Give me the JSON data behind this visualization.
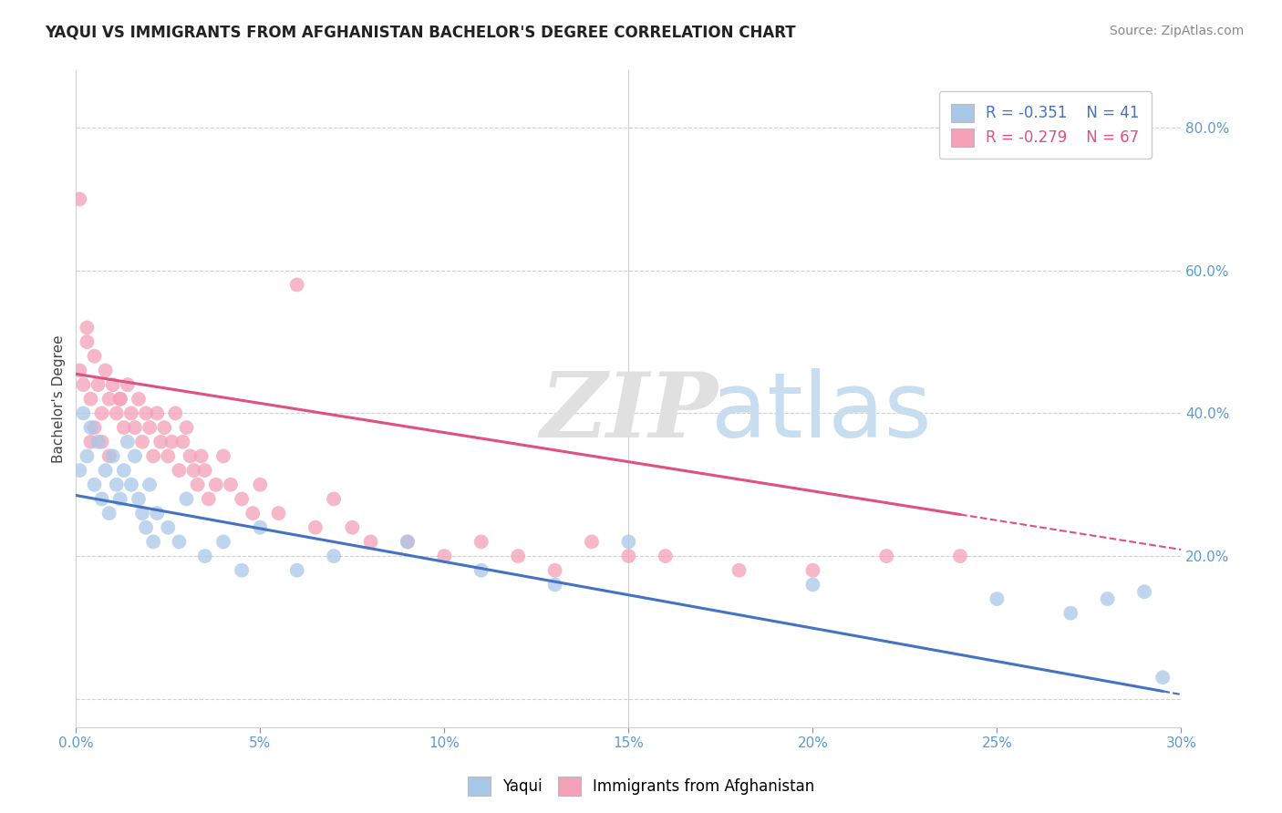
{
  "title": "YAQUI VS IMMIGRANTS FROM AFGHANISTAN BACHELOR'S DEGREE CORRELATION CHART",
  "source": "Source: ZipAtlas.com",
  "ylabel": "Bachelor's Degree",
  "xmin": 0.0,
  "xmax": 0.3,
  "ymin": -0.04,
  "ymax": 0.88,
  "legend_r1": "R = -0.351",
  "legend_n1": "N = 41",
  "legend_r2": "R = -0.279",
  "legend_n2": "N = 67",
  "blue_color": "#a8c8e8",
  "pink_color": "#f4a0b8",
  "blue_line_color": "#4472c4",
  "pink_line_color": "#e05080",
  "blue_intercept": 0.285,
  "blue_slope": -0.93,
  "pink_intercept": 0.455,
  "pink_slope": -0.82,
  "yaqui_x": [
    0.001,
    0.002,
    0.003,
    0.004,
    0.005,
    0.006,
    0.007,
    0.008,
    0.009,
    0.01,
    0.011,
    0.012,
    0.013,
    0.014,
    0.015,
    0.016,
    0.017,
    0.018,
    0.019,
    0.02,
    0.021,
    0.022,
    0.025,
    0.028,
    0.03,
    0.035,
    0.04,
    0.045,
    0.05,
    0.06,
    0.07,
    0.09,
    0.11,
    0.13,
    0.15,
    0.2,
    0.25,
    0.27,
    0.28,
    0.29,
    0.295
  ],
  "yaqui_y": [
    0.32,
    0.4,
    0.34,
    0.38,
    0.3,
    0.36,
    0.28,
    0.32,
    0.26,
    0.34,
    0.3,
    0.28,
    0.32,
    0.36,
    0.3,
    0.34,
    0.28,
    0.26,
    0.24,
    0.3,
    0.22,
    0.26,
    0.24,
    0.22,
    0.28,
    0.2,
    0.22,
    0.18,
    0.24,
    0.18,
    0.2,
    0.22,
    0.18,
    0.16,
    0.22,
    0.16,
    0.14,
    0.12,
    0.14,
    0.15,
    0.03
  ],
  "afghan_x": [
    0.001,
    0.002,
    0.003,
    0.004,
    0.005,
    0.006,
    0.007,
    0.008,
    0.009,
    0.01,
    0.011,
    0.012,
    0.013,
    0.014,
    0.015,
    0.016,
    0.017,
    0.018,
    0.019,
    0.02,
    0.021,
    0.022,
    0.023,
    0.024,
    0.025,
    0.026,
    0.027,
    0.028,
    0.029,
    0.03,
    0.031,
    0.032,
    0.033,
    0.034,
    0.035,
    0.036,
    0.038,
    0.04,
    0.042,
    0.045,
    0.048,
    0.05,
    0.055,
    0.06,
    0.065,
    0.07,
    0.075,
    0.08,
    0.09,
    0.1,
    0.11,
    0.12,
    0.13,
    0.14,
    0.15,
    0.16,
    0.18,
    0.2,
    0.22,
    0.24,
    0.001,
    0.003,
    0.005,
    0.007,
    0.009,
    0.004,
    0.012
  ],
  "afghan_y": [
    0.46,
    0.44,
    0.5,
    0.42,
    0.48,
    0.44,
    0.4,
    0.46,
    0.42,
    0.44,
    0.4,
    0.42,
    0.38,
    0.44,
    0.4,
    0.38,
    0.42,
    0.36,
    0.4,
    0.38,
    0.34,
    0.4,
    0.36,
    0.38,
    0.34,
    0.36,
    0.4,
    0.32,
    0.36,
    0.38,
    0.34,
    0.32,
    0.3,
    0.34,
    0.32,
    0.28,
    0.3,
    0.34,
    0.3,
    0.28,
    0.26,
    0.3,
    0.26,
    0.58,
    0.24,
    0.28,
    0.24,
    0.22,
    0.22,
    0.2,
    0.22,
    0.2,
    0.18,
    0.22,
    0.2,
    0.2,
    0.18,
    0.18,
    0.2,
    0.2,
    0.7,
    0.52,
    0.38,
    0.36,
    0.34,
    0.36,
    0.42
  ],
  "grid_yticks": [
    0.0,
    0.2,
    0.4,
    0.6,
    0.8
  ],
  "right_yticklabels": [
    "",
    "20.0%",
    "40.0%",
    "60.0%",
    "80.0%"
  ]
}
